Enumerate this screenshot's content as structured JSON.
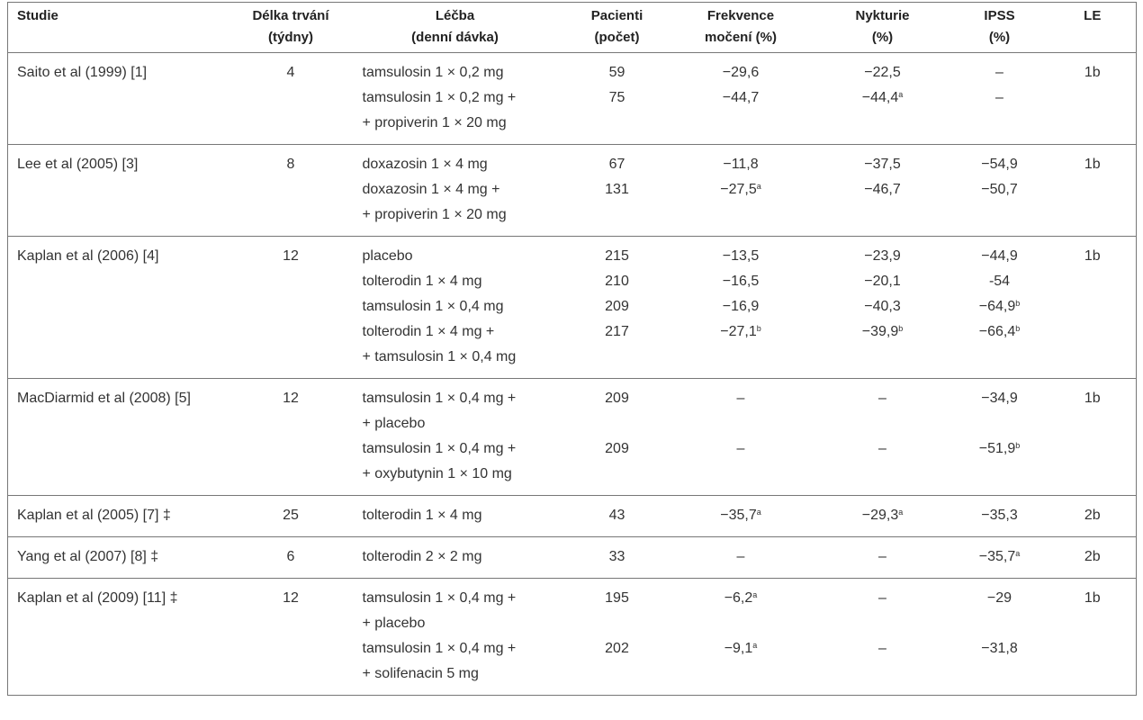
{
  "table": {
    "header": [
      [
        "Studie"
      ],
      [
        "Délka trvání",
        "(týdny)"
      ],
      [
        "Léčba",
        "(denní dávka)"
      ],
      [
        "Pacienti",
        "(počet)"
      ],
      [
        "Frekvence",
        "močení (%)"
      ],
      [
        "Nykturie",
        "(%)"
      ],
      [
        "IPSS",
        "(%)"
      ],
      [
        "LE"
      ]
    ],
    "groups": [
      {
        "studie": "Saito et al (1999) [1]",
        "delka": "4",
        "le": "1b",
        "arms": [
          {
            "lecba": [
              "tamsulosin 1 × 0,2 mg"
            ],
            "pacienti": "59",
            "frekvence": "−29,6",
            "nykturie": "−22,5",
            "ipss": "–"
          },
          {
            "lecba": [
              "tamsulosin 1 × 0,2 mg +",
              "+ propiverin 1 × 20 mg"
            ],
            "pacienti": "75",
            "frekvence": "−44,7",
            "nykturie": {
              "text": "−44,4",
              "sup": "a"
            },
            "ipss": "–"
          }
        ]
      },
      {
        "studie": "Lee et al (2005) [3]",
        "delka": "8",
        "le": "1b",
        "arms": [
          {
            "lecba": [
              "doxazosin 1 × 4 mg"
            ],
            "pacienti": "67",
            "frekvence": "−11,8",
            "nykturie": "−37,5",
            "ipss": "−54,9"
          },
          {
            "lecba": [
              "doxazosin 1 × 4 mg +",
              "+ propiverin 1 × 20 mg"
            ],
            "pacienti": "131",
            "frekvence": {
              "text": "−27,5",
              "sup": "a"
            },
            "nykturie": "−46,7",
            "ipss": "−50,7"
          }
        ]
      },
      {
        "studie": "Kaplan et al (2006) [4]",
        "delka": "12",
        "le": "1b",
        "arms": [
          {
            "lecba": [
              "placebo"
            ],
            "pacienti": "215",
            "frekvence": "−13,5",
            "nykturie": "−23,9",
            "ipss": "−44,9"
          },
          {
            "lecba": [
              "tolterodin 1 × 4 mg"
            ],
            "pacienti": "210",
            "frekvence": "−16,5",
            "nykturie": "−20,1",
            "ipss": "-54"
          },
          {
            "lecba": [
              "tamsulosin 1 × 0,4 mg"
            ],
            "pacienti": "209",
            "frekvence": "−16,9",
            "nykturie": "−40,3",
            "ipss": {
              "text": "−64,9",
              "sup": "b"
            }
          },
          {
            "lecba": [
              "tolterodin 1 × 4 mg +",
              "+ tamsulosin 1 × 0,4 mg"
            ],
            "pacienti": "217",
            "frekvence": {
              "text": "−27,1",
              "sup": "b"
            },
            "nykturie": {
              "text": "−39,9",
              "sup": "b"
            },
            "ipss": {
              "text": "−66,4",
              "sup": "b"
            }
          }
        ]
      },
      {
        "studie": "MacDiarmid et al (2008) [5]",
        "delka": "12",
        "le": "1b",
        "arms": [
          {
            "lecba": [
              "tamsulosin 1 × 0,4 mg +",
              "+ placebo"
            ],
            "pacienti": "209",
            "frekvence": "–",
            "nykturie": "–",
            "ipss": "−34,9"
          },
          {
            "lecba": [
              "tamsulosin 1 × 0,4 mg +",
              "+ oxybutynin 1 × 10 mg"
            ],
            "pacienti": "209",
            "frekvence": "–",
            "nykturie": "–",
            "ipss": {
              "text": "−51,9",
              "sup": "b"
            }
          }
        ]
      },
      {
        "studie": "Kaplan et al (2005) [7] ‡",
        "delka": "25",
        "le": "2b",
        "arms": [
          {
            "lecba": [
              "tolterodin 1 × 4 mg"
            ],
            "pacienti": "43",
            "frekvence": {
              "text": "−35,7",
              "sup": "a"
            },
            "nykturie": {
              "text": "−29,3",
              "sup": "a"
            },
            "ipss": "−35,3"
          }
        ]
      },
      {
        "studie": "Yang et al (2007) [8] ‡",
        "delka": "6",
        "le": "2b",
        "arms": [
          {
            "lecba": [
              "tolterodin 2 × 2 mg"
            ],
            "pacienti": "33",
            "frekvence": "–",
            "nykturie": "–",
            "ipss": {
              "text": "−35,7",
              "sup": "a"
            }
          }
        ]
      },
      {
        "studie": "Kaplan et al (2009) [11] ‡",
        "delka": "12",
        "le": "1b",
        "arms": [
          {
            "lecba": [
              "tamsulosin 1 × 0,4 mg +",
              "+ placebo"
            ],
            "pacienti": "195",
            "frekvence": {
              "text": "−6,2",
              "sup": "a"
            },
            "nykturie": "–",
            "ipss": "−29"
          },
          {
            "lecba": [
              "tamsulosin 1 × 0,4 mg +",
              "+ solifenacin 5 mg"
            ],
            "pacienti": "202",
            "frekvence": {
              "text": "−9,1",
              "sup": "a"
            },
            "nykturie": "–",
            "ipss": "−31,8"
          }
        ]
      }
    ]
  }
}
